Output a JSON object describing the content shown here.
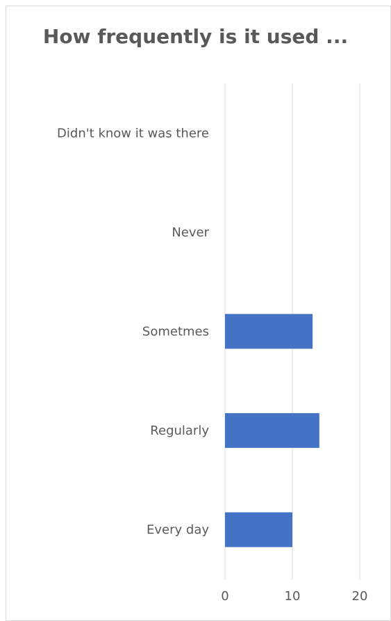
{
  "chart_data": {
    "type": "bar",
    "orientation": "horizontal",
    "title": "How frequently is it used ...",
    "xlabel": "",
    "ylabel": "",
    "categories": [
      "Didn't know it was there",
      "Never",
      "Sometmes",
      "Regularly",
      "Every day"
    ],
    "values": [
      0,
      0,
      13,
      14,
      10
    ],
    "xlim": [
      0,
      20
    ],
    "ticks": [
      0,
      10,
      20
    ],
    "grid": true,
    "legend": "none",
    "bar_color": "#4472c4",
    "grid_color": "#d9d9d9",
    "text_color": "#595959"
  }
}
